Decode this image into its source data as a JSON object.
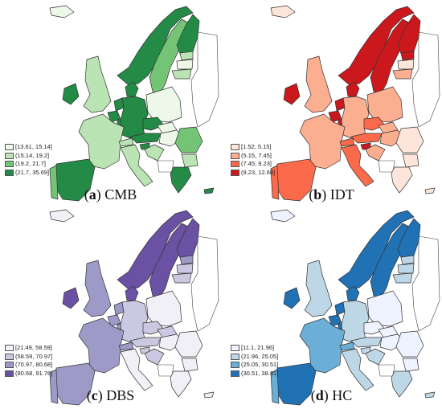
{
  "panels": [
    {
      "letter": "a",
      "name": "CMB",
      "palette": [
        "#edf8e9",
        "#bae4b3",
        "#74c476",
        "#238b45"
      ],
      "legend": [
        "[13.61, 15.14]",
        "(15.14, 19.2]",
        "(19.2, 21.7]",
        "(21.7, 35.69]"
      ],
      "regions": {
        "ireland": 3,
        "iceland": 0,
        "norway": 3,
        "sweden": 2,
        "finland": 3,
        "estonia": 1,
        "latvia": 0,
        "lithuania": 1,
        "denmark": 3,
        "uk": 1,
        "netherlands": 3,
        "belgium": 3,
        "germany": 3,
        "poland": 0,
        "france": 1,
        "czech": 3,
        "slovakia": 0,
        "austria": 3,
        "hungary": 0,
        "romania": 2,
        "bulgaria": 1,
        "slovenia": 3,
        "croatia": 1,
        "italy": 1,
        "spain": 3,
        "portugal": 2,
        "greece": 3,
        "cyprus": 3,
        "switzerland": 1,
        "luxembourg": 3
      }
    },
    {
      "letter": "b",
      "name": "IDT",
      "palette": [
        "#fee5d9",
        "#fcae91",
        "#fb6a4a",
        "#cb181d"
      ],
      "legend": [
        "[1.52, 5.15]",
        "(5.15, 7.45]",
        "(7.45, 9.23]",
        "(9.23, 12.68]"
      ],
      "regions": {
        "ireland": 3,
        "iceland": 0,
        "norway": 3,
        "sweden": 3,
        "finland": 3,
        "estonia": 3,
        "latvia": 0,
        "lithuania": 1,
        "denmark": 3,
        "uk": 1,
        "netherlands": 3,
        "belgium": 3,
        "germany": 1,
        "poland": 1,
        "france": 1,
        "czech": 2,
        "slovakia": 1,
        "austria": 2,
        "hungary": 1,
        "romania": 0,
        "bulgaria": 0,
        "slovenia": 3,
        "croatia": 1,
        "italy": 2,
        "spain": 2,
        "portugal": 2,
        "greece": 0,
        "cyprus": 0,
        "switzerland": 2,
        "luxembourg": 3
      }
    },
    {
      "letter": "c",
      "name": "DBS",
      "palette": [
        "#f2f0f7",
        "#cbc9e2",
        "#9e9ac8",
        "#6a51a3"
      ],
      "legend": [
        "[21.49, 58.59]",
        "(58.59, 70.97]",
        "(70.97, 80.68]",
        "(80.68, 91.76]"
      ],
      "regions": {
        "ireland": 3,
        "iceland": 0,
        "norway": 3,
        "sweden": 3,
        "finland": 3,
        "estonia": 2,
        "latvia": 1,
        "lithuania": 1,
        "denmark": 3,
        "uk": 2,
        "netherlands": 2,
        "belgium": 2,
        "germany": 1,
        "poland": 0,
        "france": 2,
        "czech": 1,
        "slovakia": 1,
        "austria": 1,
        "hungary": 0,
        "romania": 0,
        "bulgaria": 0,
        "slovenia": 1,
        "croatia": 1,
        "italy": 0,
        "spain": 2,
        "portugal": 2,
        "greece": 0,
        "cyprus": 0,
        "switzerland": 2,
        "luxembourg": 2
      }
    },
    {
      "letter": "d",
      "name": "HC",
      "palette": [
        "#eff3ff",
        "#bdd7e7",
        "#6baed6",
        "#2171b5"
      ],
      "legend": [
        "[11.1, 21.96]",
        "(21.96, 25.05]",
        "(25.05, 30.51]",
        "(30.51, 38.31]"
      ],
      "regions": {
        "ireland": 3,
        "iceland": 0,
        "norway": 3,
        "sweden": 3,
        "finland": 3,
        "estonia": 1,
        "latvia": 1,
        "lithuania": 1,
        "denmark": 3,
        "uk": 1,
        "netherlands": 3,
        "belgium": 3,
        "germany": 1,
        "poland": 0,
        "france": 2,
        "czech": 0,
        "slovakia": 0,
        "austria": 1,
        "hungary": 0,
        "romania": 0,
        "bulgaria": 0,
        "slovenia": 1,
        "croatia": 1,
        "italy": 1,
        "spain": 3,
        "portugal": 2,
        "greece": 1,
        "cyprus": 1,
        "switzerland": 2,
        "luxembourg": 3
      }
    }
  ]
}
